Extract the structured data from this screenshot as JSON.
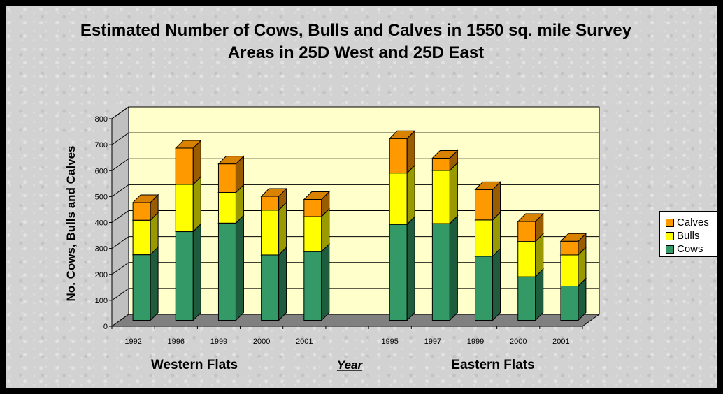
{
  "chart_data": {
    "type": "bar",
    "stacked": true,
    "title": "Estimated Number of Cows, Bulls and Calves in 1550 sq. mile Survey Areas in 25D West and 25D East",
    "ylabel": "No. Cows, Bulls and Calves",
    "xlabel": "Year",
    "group_labels": [
      "Western Flats",
      "Eastern Flats"
    ],
    "ylim": [
      0,
      800
    ],
    "yticks": [
      0,
      100,
      200,
      300,
      400,
      500,
      600,
      700,
      800
    ],
    "categories": [
      "1992",
      "1996",
      "1999",
      "2000",
      "2001",
      "",
      "1995",
      "1997",
      "1999",
      "2000",
      "2001"
    ],
    "series": [
      {
        "name": "Cows",
        "color": "#339966",
        "values": [
          253,
          342,
          375,
          252,
          265,
          null,
          370,
          373,
          247,
          168,
          132
        ]
      },
      {
        "name": "Bulls",
        "color": "#ffff00",
        "values": [
          133,
          182,
          118,
          173,
          135,
          null,
          198,
          205,
          140,
          136,
          120
        ]
      },
      {
        "name": "Calves",
        "color": "#ff9900",
        "values": [
          68,
          140,
          110,
          53,
          66,
          null,
          133,
          47,
          117,
          77,
          53
        ]
      }
    ],
    "legend_position": "right",
    "grid": true
  },
  "legend": [
    {
      "label": "Calves",
      "color": "#ff9900"
    },
    {
      "label": "Bulls",
      "color": "#ffff00"
    },
    {
      "label": "Cows",
      "color": "#339966"
    }
  ]
}
